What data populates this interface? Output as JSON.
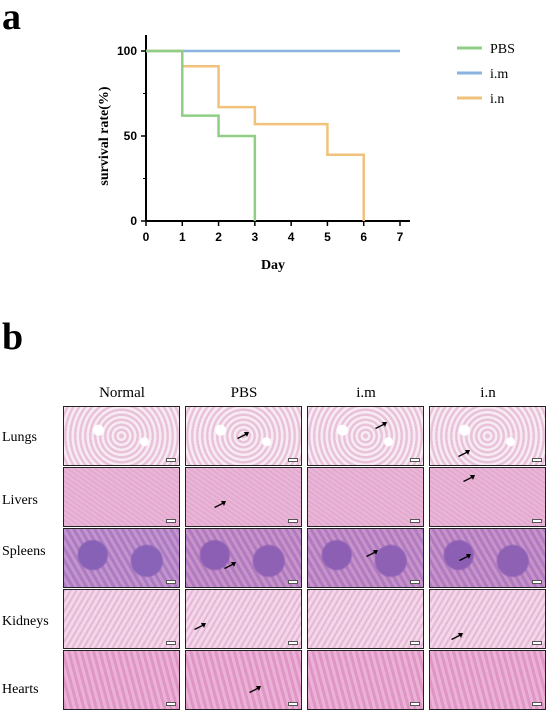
{
  "panel_labels": {
    "a": "a",
    "b": "b"
  },
  "chart_data": {
    "type": "line",
    "step": true,
    "xlabel": "Day",
    "ylabel": "survival rate(%)",
    "xlim": [
      0,
      7
    ],
    "ylim": [
      0,
      100
    ],
    "xticks": [
      0,
      1,
      2,
      3,
      4,
      5,
      6,
      7
    ],
    "yticks": [
      0,
      50,
      100
    ],
    "legend_position": "right",
    "series": [
      {
        "name": "PBS",
        "color": "#8fcf85",
        "points": [
          [
            0,
            100
          ],
          [
            1,
            100
          ],
          [
            1,
            62
          ],
          [
            2,
            62
          ],
          [
            2,
            50
          ],
          [
            3,
            50
          ],
          [
            3,
            0
          ]
        ]
      },
      {
        "name": "i.m",
        "color": "#8ab3e0",
        "points": [
          [
            0,
            100
          ],
          [
            7,
            100
          ]
        ]
      },
      {
        "name": "i.n",
        "color": "#f0c27b",
        "points": [
          [
            0,
            100
          ],
          [
            1,
            100
          ],
          [
            1,
            91
          ],
          [
            2,
            91
          ],
          [
            2,
            67
          ],
          [
            3,
            67
          ],
          [
            3,
            57
          ],
          [
            5,
            57
          ],
          [
            5,
            39
          ],
          [
            6,
            39
          ],
          [
            6,
            0
          ]
        ]
      }
    ]
  },
  "histology": {
    "columns": [
      "Normal",
      "PBS",
      "i.m",
      "i.n"
    ],
    "rows": [
      "Lungs",
      "Livers",
      "Spleens",
      "Kidneys",
      "Hearts"
    ]
  }
}
